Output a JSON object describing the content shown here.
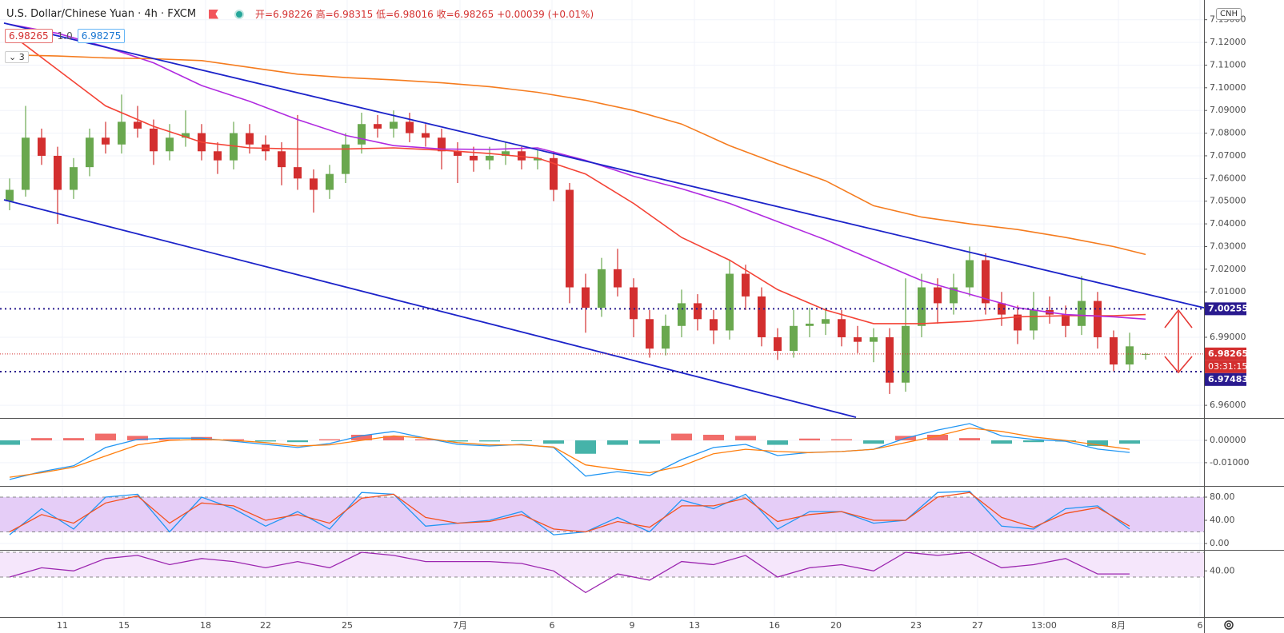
{
  "header": {
    "symbol": "U.S. Dollar/Chinese Yuan · 4h · FXCM",
    "open_label": "开=",
    "high_label": "高=",
    "low_label": "低=",
    "close_label": "收=",
    "change": "+0.00039 (+0.01%)",
    "quotes": [
      "6.98265",
      "1.0",
      "6.98275"
    ],
    "indicators": "3",
    "currency": "CNH"
  },
  "chart_data": [
    {
      "type": "candlestick",
      "xlim": [
        -0.6,
        74.65
      ],
      "xticks": [
        {
          "value": 3.3,
          "label": "11"
        },
        {
          "value": 7.15,
          "label": "15"
        },
        {
          "value": 12.25,
          "label": "18"
        },
        {
          "value": 16,
          "label": "22"
        },
        {
          "value": 21.1,
          "label": "25"
        },
        {
          "value": 28.15,
          "label": "7月"
        },
        {
          "value": 33.9,
          "label": "6"
        },
        {
          "value": 38.9,
          "label": "9"
        },
        {
          "value": 42.8,
          "label": "13"
        },
        {
          "value": 47.8,
          "label": "16"
        },
        {
          "value": 51.65,
          "label": "20"
        },
        {
          "value": 56.65,
          "label": "23"
        },
        {
          "value": 60.5,
          "label": "27"
        },
        {
          "value": 64.65,
          "label": "13:00"
        },
        {
          "value": 69.3,
          "label": "8月"
        },
        {
          "value": 74.4,
          "label": "6"
        }
      ],
      "ylim": [
        6.9544,
        7.1387
      ],
      "yticks": [
        {
          "value": 7.13,
          "label": "7.13000"
        },
        {
          "value": 7.12,
          "label": "7.12000"
        },
        {
          "value": 7.11,
          "label": "7.11000"
        },
        {
          "value": 7.1,
          "label": "7.10000"
        },
        {
          "value": 7.09,
          "label": "7.09000"
        },
        {
          "value": 7.08,
          "label": "7.08000"
        },
        {
          "value": 7.07,
          "label": "7.07000"
        },
        {
          "value": 7.06,
          "label": "7.06000"
        },
        {
          "value": 7.05,
          "label": "7.05000"
        },
        {
          "value": 7.04,
          "label": "7.04000"
        },
        {
          "value": 7.03,
          "label": "7.03000"
        },
        {
          "value": 7.02,
          "label": "7.02000"
        },
        {
          "value": 7.01,
          "label": "7.01000"
        },
        {
          "value": 6.99,
          "label": "6.99000"
        },
        {
          "value": 6.96,
          "label": "6.96000"
        }
      ],
      "grid": true,
      "up_color": "#6aa84f",
      "down_color": "#d32f2f",
      "open": [
        7.05,
        7.055,
        7.078,
        7.07,
        7.055,
        7.065,
        7.078,
        7.075,
        7.085,
        7.082,
        7.072,
        7.078,
        7.08,
        7.072,
        7.068,
        7.08,
        7.075,
        7.072,
        7.065,
        7.06,
        7.055,
        7.062,
        7.075,
        7.084,
        7.082,
        7.085,
        7.08,
        7.078,
        7.072,
        7.07,
        7.068,
        7.07,
        7.072,
        7.068,
        7.069,
        7.055,
        7.012,
        7.003,
        7.02,
        7.012,
        6.998,
        6.985,
        6.995,
        7.005,
        6.998,
        6.993,
        7.018,
        7.008,
        6.99,
        6.984,
        6.995,
        6.996,
        6.998,
        6.99,
        6.988,
        6.99,
        6.97,
        6.995,
        7.012,
        7.005,
        7.012,
        7.024,
        7.005,
        7.0,
        6.993,
        7.002,
        7.0,
        6.995,
        7.006,
        6.99,
        6.978,
        6.98226
      ],
      "high": [
        7.06,
        7.092,
        7.082,
        7.074,
        7.069,
        7.082,
        7.085,
        7.097,
        7.092,
        7.086,
        7.084,
        7.09,
        7.084,
        7.076,
        7.085,
        7.084,
        7.079,
        7.076,
        7.088,
        7.064,
        7.066,
        7.08,
        7.089,
        7.088,
        7.09,
        7.089,
        7.084,
        7.082,
        7.076,
        7.074,
        7.074,
        7.076,
        7.074,
        7.073,
        7.072,
        7.058,
        7.018,
        7.025,
        7.029,
        7.016,
        7.002,
        7.0,
        7.011,
        7.009,
        7.002,
        7.024,
        7.022,
        7.012,
        6.994,
        7.002,
        7.003,
        7.003,
        7.002,
        6.995,
        6.994,
        6.994,
        7.016,
        7.018,
        7.016,
        7.018,
        7.03,
        7.027,
        7.01,
        7.004,
        7.01,
        7.008,
        7.004,
        7.017,
        7.01,
        6.993,
        6.992,
        6.98315
      ],
      "low": [
        7.046,
        7.052,
        7.066,
        7.04,
        7.051,
        7.061,
        7.071,
        7.071,
        7.078,
        7.066,
        7.068,
        7.074,
        7.068,
        7.062,
        7.064,
        7.071,
        7.068,
        7.057,
        7.055,
        7.045,
        7.051,
        7.058,
        7.071,
        7.078,
        7.078,
        7.076,
        7.074,
        7.064,
        7.058,
        7.063,
        7.064,
        7.066,
        7.064,
        7.064,
        7.05,
        7.005,
        6.992,
        6.999,
        7.008,
        6.99,
        6.981,
        6.982,
        6.99,
        6.993,
        6.987,
        6.989,
        7.002,
        6.986,
        6.98,
        6.981,
        6.99,
        6.991,
        6.986,
        6.983,
        6.979,
        6.965,
        6.966,
        6.99,
        6.996,
        7.0,
        7.008,
        7.0,
        6.995,
        6.987,
        6.989,
        6.996,
        6.99,
        6.991,
        6.985,
        6.975,
        6.975,
        6.98016
      ],
      "close": [
        7.055,
        7.078,
        7.07,
        7.055,
        7.065,
        7.078,
        7.075,
        7.085,
        7.082,
        7.072,
        7.078,
        7.08,
        7.072,
        7.068,
        7.08,
        7.075,
        7.072,
        7.065,
        7.06,
        7.055,
        7.062,
        7.075,
        7.084,
        7.082,
        7.085,
        7.08,
        7.078,
        7.072,
        7.07,
        7.068,
        7.07,
        7.072,
        7.068,
        7.069,
        7.055,
        7.012,
        7.003,
        7.02,
        7.012,
        6.998,
        6.985,
        6.995,
        7.005,
        6.998,
        6.993,
        7.018,
        7.008,
        6.99,
        6.984,
        6.995,
        6.996,
        6.998,
        6.99,
        6.988,
        6.99,
        6.97,
        6.995,
        7.012,
        7.005,
        7.012,
        7.024,
        7.005,
        7.0,
        6.993,
        7.002,
        7.0,
        6.995,
        7.006,
        6.99,
        6.978,
        6.986,
        6.98265
      ],
      "overlays": {
        "x": [
          0,
          3,
          6,
          9,
          12,
          15,
          18,
          21,
          24,
          27,
          30,
          33,
          36,
          39,
          42,
          45,
          48,
          51,
          54,
          57,
          60,
          63,
          66,
          69,
          71
        ],
        "series": [
          {
            "color": "#f44336",
            "values": [
              7.124,
              7.108,
              7.092,
              7.083,
              7.076,
              7.0735,
              7.073,
              7.073,
              7.0735,
              7.0725,
              7.071,
              7.069,
              7.062,
              7.049,
              7.034,
              7.024,
              7.011,
              7.002,
              6.996,
              6.996,
              6.997,
              6.999,
              6.9995,
              6.9995,
              7.0
            ]
          },
          {
            "color": "#b02ae0",
            "values": [
              7.128,
              7.124,
              7.118,
              7.111,
              7.101,
              7.094,
              7.086,
              7.079,
              7.0745,
              7.073,
              7.0728,
              7.0735,
              7.068,
              7.061,
              7.0555,
              7.049,
              7.041,
              7.033,
              7.024,
              7.015,
              7.009,
              7.003,
              7.0,
              6.999,
              6.998
            ]
          },
          {
            "color": "#f57c1f",
            "values": [
              7.1145,
              7.114,
              7.1132,
              7.1128,
              7.112,
              7.109,
              7.106,
              7.1045,
              7.1035,
              7.1022,
              7.1005,
              7.098,
              7.0945,
              7.09,
              7.084,
              7.0745,
              7.0665,
              7.059,
              7.048,
              7.043,
              7.04,
              7.0375,
              7.034,
              7.03,
              7.0265
            ]
          }
        ]
      },
      "trend_lines": [
        {
          "color": "#1c23c9",
          "x": [
            -0.35,
            74.65
          ],
          "values": [
            7.1285,
            7.003
          ]
        },
        {
          "color": "#1c23c9",
          "x": [
            -0.35,
            52.9
          ],
          "values": [
            7.0506,
            6.9547
          ]
        }
      ],
      "levels": [
        {
          "value": 7.00255,
          "color": "#2a1b8f"
        },
        {
          "value": 6.97483,
          "color": "#2a1b8f"
        }
      ],
      "last_price_color": "#d32f2f",
      "countdown": "03:31:15"
    },
    {
      "type": "macd",
      "ylim": [
        -0.0204,
        0.01
      ],
      "yticks": [
        {
          "value": 0,
          "label": "0.00000"
        },
        {
          "value": -0.01,
          "label": "-0.01000"
        }
      ],
      "up_color": "#ef5350",
      "down_color": "#26a69a",
      "x": [
        0,
        2,
        4,
        6,
        8,
        10,
        12,
        14,
        16,
        18,
        20,
        22,
        24,
        26,
        28,
        30,
        32,
        34,
        36,
        38,
        40,
        42,
        44,
        46,
        48,
        50,
        52,
        54,
        56,
        58,
        60,
        62,
        64,
        66,
        68,
        70
      ],
      "histogram": [
        -0.002,
        0.001,
        0.001,
        0.003,
        0.002,
        0.0005,
        0.0015,
        0.0005,
        -0.0005,
        -0.0008,
        0.0005,
        0.0025,
        0.002,
        0.0005,
        -0.0005,
        -0.0005,
        -0.0003,
        -0.0015,
        -0.006,
        -0.002,
        -0.0015,
        0.003,
        0.0025,
        0.002,
        -0.002,
        0.0008,
        0.0005,
        -0.0015,
        0.002,
        0.0025,
        0.001,
        -0.0015,
        -0.0008,
        -0.0005,
        -0.0025,
        -0.0015
      ],
      "series": [
        {
          "color": "#2196f3",
          "values": [
            -0.0175,
            -0.014,
            -0.0114,
            -0.0032,
            0.0004,
            0.001,
            0.001,
            -0.0004,
            -0.0018,
            -0.0032,
            -0.0014,
            0.0021,
            0.004,
            0.001,
            -0.0018,
            -0.0025,
            -0.0018,
            -0.0032,
            -0.016,
            -0.014,
            -0.0157,
            -0.0086,
            -0.0032,
            -0.0018,
            -0.0068,
            -0.0054,
            -0.005,
            -0.004,
            0.001,
            0.0046,
            0.0075,
            0.002,
            0.0004,
            -0.0004,
            -0.0039,
            -0.0054
          ]
        },
        {
          "color": "#ff7f0e",
          "values": [
            -0.0165,
            -0.0145,
            -0.012,
            -0.007,
            -0.002,
            0.0,
            0.0005,
            0.0,
            -0.001,
            -0.0025,
            -0.002,
            0.0,
            0.002,
            0.001,
            -0.001,
            -0.002,
            -0.002,
            -0.003,
            -0.011,
            -0.013,
            -0.0145,
            -0.0115,
            -0.006,
            -0.004,
            -0.005,
            -0.0055,
            -0.005,
            -0.004,
            -0.001,
            0.002,
            0.0055,
            0.004,
            0.0015,
            0.0,
            -0.002,
            -0.004
          ]
        }
      ]
    },
    {
      "type": "line",
      "ylim": [
        -11,
        99.3
      ],
      "yticks": [
        {
          "value": 80,
          "label": "80.00"
        },
        {
          "value": 40,
          "label": "40.00"
        },
        {
          "value": 0,
          "label": "0.00"
        }
      ],
      "band": [
        20,
        80
      ],
      "band_color": "#e5cdf7",
      "x": [
        0,
        2,
        4,
        6,
        8,
        10,
        12,
        14,
        16,
        18,
        20,
        22,
        24,
        26,
        28,
        30,
        32,
        34,
        36,
        38,
        40,
        42,
        44,
        46,
        48,
        50,
        52,
        54,
        56,
        58,
        60,
        62,
        64,
        66,
        68,
        70
      ],
      "series": [
        {
          "color": "#2196f3",
          "values": [
            15,
            60,
            25,
            80,
            85,
            20,
            80,
            60,
            30,
            55,
            25,
            88,
            85,
            30,
            35,
            40,
            55,
            15,
            20,
            45,
            20,
            75,
            60,
            85,
            25,
            55,
            55,
            35,
            40,
            88,
            90,
            30,
            25,
            60,
            65,
            25
          ]
        },
        {
          "color": "#f4511e",
          "values": [
            20,
            50,
            35,
            70,
            82,
            35,
            70,
            65,
            40,
            50,
            35,
            78,
            85,
            45,
            35,
            38,
            50,
            25,
            20,
            38,
            28,
            65,
            65,
            78,
            38,
            50,
            55,
            40,
            40,
            80,
            88,
            45,
            28,
            52,
            62,
            30
          ]
        }
      ]
    },
    {
      "type": "line",
      "ylim": [
        -34.5,
        73.9
      ],
      "yticks": [
        {
          "value": 40,
          "label": "40.00"
        }
      ],
      "band": [
        30,
        70
      ],
      "band_color": "#f5e6fb",
      "x": [
        0,
        2,
        4,
        6,
        8,
        10,
        12,
        14,
        16,
        18,
        20,
        22,
        24,
        26,
        28,
        30,
        32,
        34,
        36,
        38,
        40,
        42,
        44,
        46,
        48,
        50,
        52,
        54,
        56,
        58,
        60,
        62,
        64,
        66,
        68,
        70
      ],
      "series": [
        {
          "color": "#9c27b0",
          "values": [
            30,
            45,
            40,
            60,
            65,
            50,
            60,
            55,
            45,
            55,
            45,
            70,
            65,
            55,
            55,
            55,
            52,
            40,
            5,
            35,
            25,
            55,
            50,
            65,
            30,
            45,
            50,
            40,
            70,
            65,
            70,
            45,
            50,
            60,
            35,
            35
          ]
        }
      ]
    }
  ]
}
